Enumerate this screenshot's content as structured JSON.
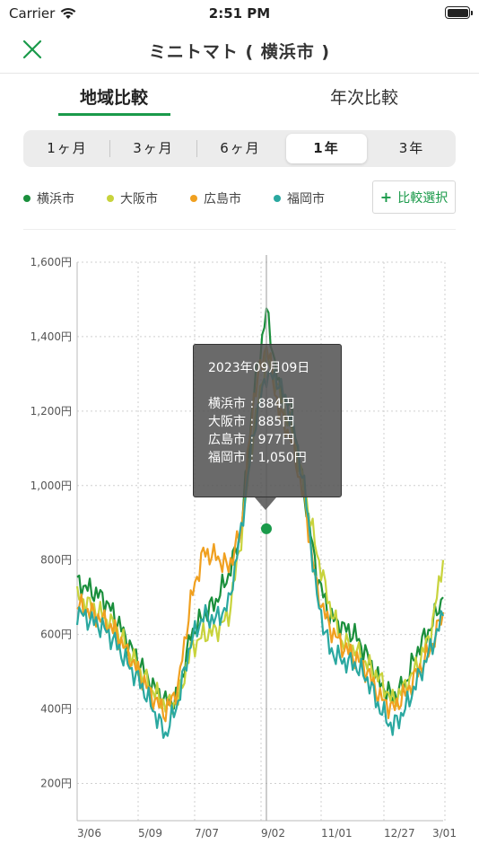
{
  "status_bar": {
    "carrier": "Carrier",
    "time": "2:51 PM"
  },
  "nav": {
    "title": "ミニトマト ( 横浜市 )"
  },
  "main_tabs": [
    {
      "label": "地域比較",
      "selected": true
    },
    {
      "label": "年次比較",
      "selected": false
    }
  ],
  "period_tabs": [
    {
      "label": "1ヶ月",
      "selected": false
    },
    {
      "label": "3ヶ月",
      "selected": false
    },
    {
      "label": "6ヶ月",
      "selected": false
    },
    {
      "label": "1年",
      "selected": true
    },
    {
      "label": "3年",
      "selected": false
    }
  ],
  "legend": [
    {
      "label": "横浜市",
      "color": "#1a8f3c"
    },
    {
      "label": "大阪市",
      "color": "#c8d33c"
    },
    {
      "label": "広島市",
      "color": "#f0a020"
    },
    {
      "label": "福岡市",
      "color": "#2aa8a0"
    }
  ],
  "compare_button": {
    "label": "比較選択"
  },
  "tooltip": {
    "date": "2023年09月09日",
    "lines": [
      "横浜市 : 884円",
      "大阪市 : 885円",
      "広島市 : 977円",
      "福岡市 : 1,050円"
    ]
  },
  "chart_data": {
    "type": "line",
    "y_ticks": [
      "1,600円",
      "1,400円",
      "1,200円",
      "1,000円",
      "800円",
      "600円",
      "400円",
      "200円"
    ],
    "x_ticks": [
      "3/06",
      "5/09",
      "7/07",
      "9/02",
      "11/01",
      "12/27",
      "3/01"
    ],
    "ylim": [
      100,
      1600
    ],
    "grid": true,
    "selected_x": "9/09",
    "selected_value": 884,
    "x_dates": [
      "3/06",
      "3/20",
      "4/03",
      "4/17",
      "5/01",
      "5/15",
      "5/29",
      "6/12",
      "6/26",
      "7/10",
      "7/24",
      "8/07",
      "8/21",
      "9/04",
      "9/11",
      "9/18",
      "9/25",
      "10/02",
      "10/09",
      "10/16",
      "10/30",
      "11/13",
      "11/27",
      "12/11",
      "12/25",
      "1/08",
      "1/22",
      "2/05",
      "2/19",
      "3/01"
    ],
    "series": [
      {
        "name": "横浜市",
        "color": "#1a8f3c",
        "values": [
          740,
          720,
          700,
          650,
          580,
          520,
          460,
          420,
          430,
          600,
          650,
          690,
          760,
          880,
          1250,
          1470,
          1260,
          1200,
          980,
          760,
          650,
          620,
          600,
          540,
          470,
          430,
          470,
          560,
          620,
          700
        ]
      },
      {
        "name": "大阪市",
        "color": "#c8d33c",
        "values": [
          700,
          680,
          650,
          620,
          560,
          500,
          450,
          410,
          420,
          560,
          600,
          610,
          650,
          860,
          1150,
          1350,
          1250,
          1150,
          990,
          820,
          680,
          580,
          560,
          520,
          480,
          420,
          460,
          520,
          600,
          800
        ]
      },
      {
        "name": "広島市",
        "color": "#f0a020",
        "values": [
          680,
          660,
          640,
          610,
          550,
          490,
          430,
          390,
          460,
          690,
          820,
          810,
          780,
          880,
          1240,
          1380,
          1200,
          1120,
          960,
          720,
          620,
          570,
          540,
          500,
          430,
          400,
          440,
          500,
          560,
          660
        ]
      },
      {
        "name": "福岡市",
        "color": "#2aa8a0",
        "values": [
          660,
          640,
          620,
          580,
          520,
          470,
          400,
          330,
          420,
          580,
          650,
          640,
          680,
          880,
          1150,
          1300,
          1280,
          1180,
          1000,
          700,
          560,
          530,
          520,
          480,
          400,
          350,
          400,
          480,
          560,
          650
        ]
      }
    ]
  }
}
